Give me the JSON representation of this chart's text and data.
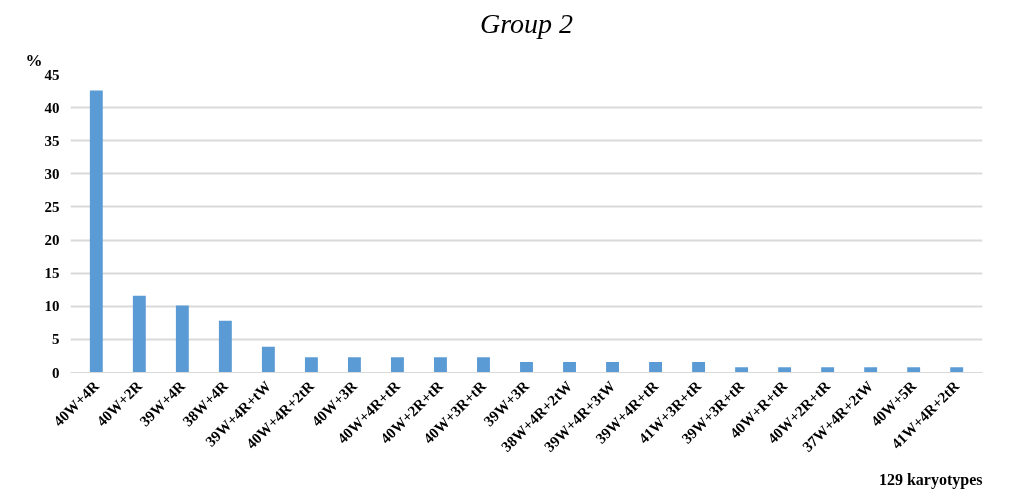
{
  "chart_data": {
    "type": "bar",
    "title": "Group 2",
    "ylabel": "%",
    "categories": [
      "40W+4R",
      "40W+2R",
      "39W+4R",
      "38W+4R",
      "39W+4R+tW",
      "40W+4R+2tR",
      "40W+3R",
      "40W+4R+tR",
      "40W+2R+tR",
      "40W+3R+tR",
      "39W+3R",
      "38W+4R+2tW",
      "39W+4R+3tW",
      "39W+4R+tR",
      "41W+3R+tR",
      "39W+3R+tR",
      "40W+R+tR",
      "40W+2R+tR",
      "37W+4R+2tW",
      "40W+5R",
      "41W+4R+2tR"
    ],
    "values": [
      42.6,
      11.6,
      10.1,
      7.8,
      3.9,
      2.3,
      2.3,
      2.3,
      2.3,
      2.3,
      1.6,
      1.6,
      1.6,
      1.6,
      1.6,
      0.8,
      0.8,
      0.8,
      0.8,
      0.8,
      0.8
    ],
    "color": "#5b9bd5",
    "ylim": [
      0,
      45
    ],
    "yticks": [
      0,
      5,
      10,
      15,
      20,
      25,
      30,
      35,
      40,
      45
    ],
    "grid": "y",
    "annotations": [
      "129 karyotypes"
    ]
  }
}
